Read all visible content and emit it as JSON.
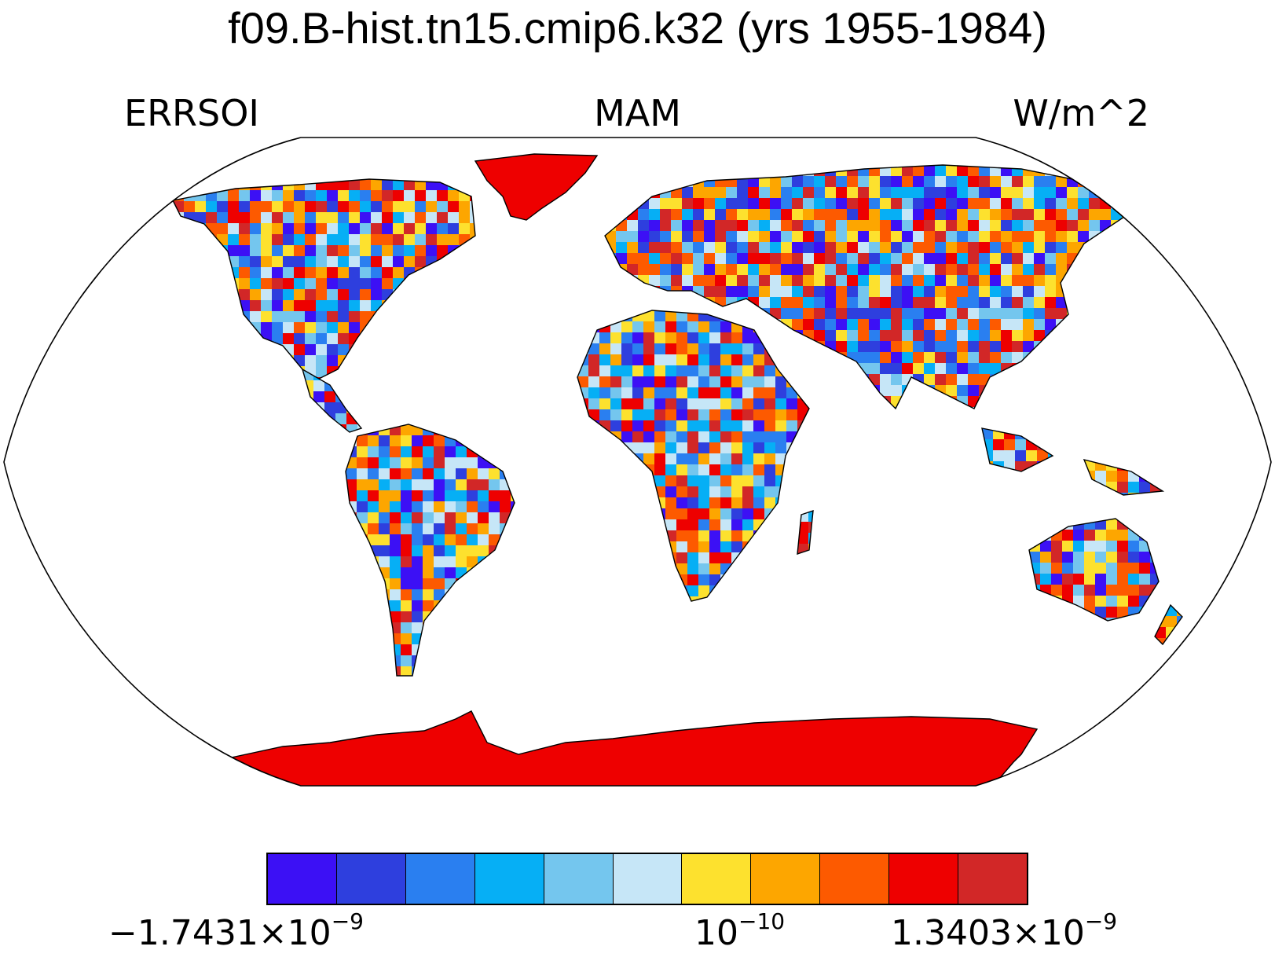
{
  "title": "f09.B-hist.tn15.cmip6.k32 (yrs 1955-1984)",
  "left_label": "ERRSOI",
  "center_label": "MAM",
  "right_label": "W/m^2",
  "projection": "robinson",
  "colorbar": {
    "colors": [
      "#3c10f5",
      "#2e3fde",
      "#2a7ff0",
      "#06aff5",
      "#74c6ee",
      "#c6e6f7",
      "#fde12e",
      "#fda600",
      "#fd5a00",
      "#ee0000",
      "#d22727"
    ],
    "labels": [
      {
        "mantissa": "−1.7431×10",
        "exponent": "−9"
      },
      {
        "mantissa": "10",
        "exponent": "−10"
      },
      {
        "mantissa": "1.3403×10",
        "exponent": "−9"
      }
    ]
  },
  "land_colors": {
    "greenland": "#ee0000",
    "antarctica": "#ee0000"
  }
}
